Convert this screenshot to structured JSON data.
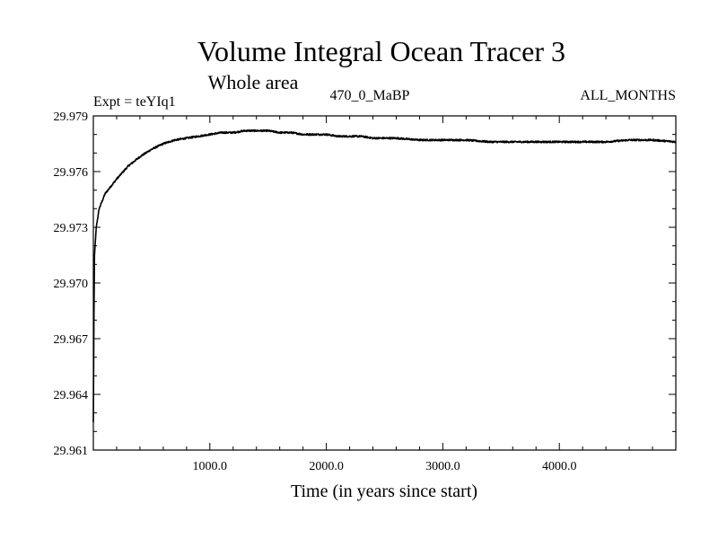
{
  "chart_data": {
    "type": "line",
    "title": "Volume Integral Ocean Tracer 3",
    "subtitle": "Whole area",
    "annotations": {
      "left": "Expt = teYIq1",
      "center": "470_0_MaBP",
      "right": "ALL_MONTHS"
    },
    "xlabel": "Time (in years since start)",
    "ylabel": "",
    "xlim": [
      0,
      5000
    ],
    "ylim": [
      29.961,
      29.979
    ],
    "x_ticks": [
      1000,
      2000,
      3000,
      4000
    ],
    "x_tick_labels": [
      "1000.0",
      "2000.0",
      "3000.0",
      "4000.0"
    ],
    "y_ticks": [
      29.961,
      29.964,
      29.967,
      29.97,
      29.973,
      29.976,
      29.979
    ],
    "y_tick_labels": [
      "29.961",
      "29.964",
      "29.967",
      "29.970",
      "29.973",
      "29.976",
      "29.979"
    ],
    "grid": false,
    "line_color": "#000000",
    "series": [
      {
        "x": [
          0,
          5,
          10,
          25,
          50,
          100,
          150,
          200,
          300,
          400,
          500,
          600,
          700,
          800,
          900,
          1000,
          1100,
          1200,
          1300,
          1400,
          1500,
          1600,
          1700,
          1800,
          1900,
          2000,
          2100,
          2200,
          2300,
          2400,
          2500,
          2600,
          2800,
          3000,
          3200,
          3400,
          3600,
          3800,
          4000,
          4200,
          4400,
          4600,
          4800,
          5000
        ],
        "values": [
          29.9625,
          29.968,
          29.9715,
          29.973,
          29.974,
          29.9748,
          29.9752,
          29.9756,
          29.9763,
          29.9768,
          29.9772,
          29.9775,
          29.9777,
          29.9778,
          29.9779,
          29.978,
          29.9781,
          29.9781,
          29.9782,
          29.9782,
          29.9782,
          29.9781,
          29.9781,
          29.978,
          29.978,
          29.978,
          29.9779,
          29.9779,
          29.9779,
          29.9778,
          29.9778,
          29.9778,
          29.9777,
          29.9777,
          29.9777,
          29.9776,
          29.9776,
          29.9776,
          29.9776,
          29.9776,
          29.9776,
          29.9777,
          29.9777,
          29.9776
        ]
      }
    ]
  }
}
